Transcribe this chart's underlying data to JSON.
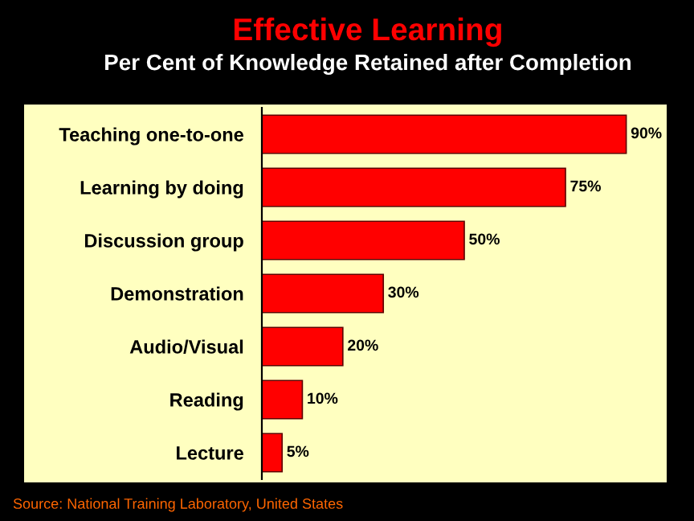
{
  "chart_data": {
    "type": "bar",
    "orientation": "horizontal",
    "title": "Effective Learning",
    "subtitle": "Per Cent of Knowledge Retained after Completion",
    "categories": [
      "Teaching one-to-one",
      "Learning by doing",
      "Discussion group",
      "Demonstration",
      "Audio/Visual",
      "Reading",
      "Lecture"
    ],
    "values": [
      90,
      75,
      50,
      30,
      20,
      10,
      5
    ],
    "value_labels": [
      "90%",
      "75%",
      "50%",
      "30%",
      "20%",
      "10%",
      "5%"
    ],
    "color": "#ff0000",
    "xlim": [
      0,
      100
    ],
    "tick_labels": "y",
    "grid": false,
    "legend": false,
    "annotations": [
      "Source: National Training Laboratory, United States"
    ]
  }
}
